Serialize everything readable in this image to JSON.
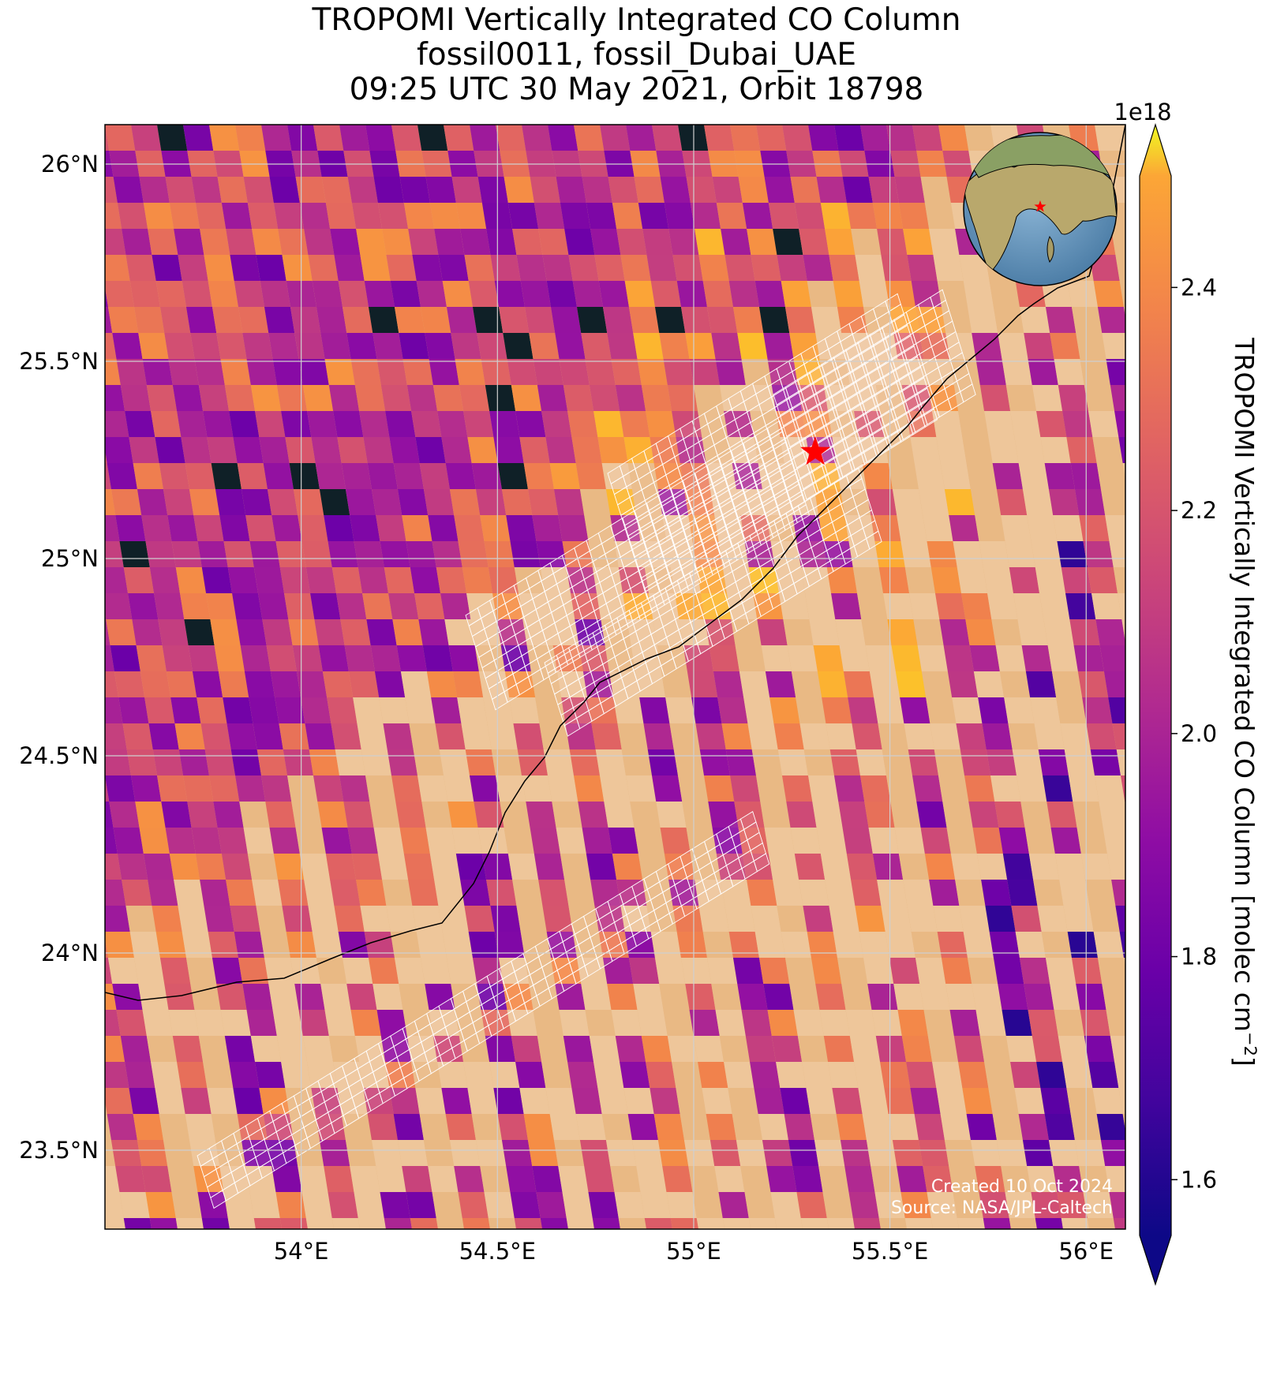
{
  "title": {
    "line1": "TROPOMI Vertically Integrated CO Column",
    "line2": "fossil0011, fossil_Dubai_UAE",
    "line3": "09:25 UTC 30 May 2021, Orbit 18798"
  },
  "map": {
    "lon_range": [
      53.5,
      56.1
    ],
    "lat_range": [
      23.3,
      26.1
    ],
    "lon_ticks": [
      {
        "value": 54.0,
        "label": "54°E"
      },
      {
        "value": 54.5,
        "label": "54.5°E"
      },
      {
        "value": 55.0,
        "label": "55°E"
      },
      {
        "value": 55.5,
        "label": "55.5°E"
      },
      {
        "value": 56.0,
        "label": "56°E"
      }
    ],
    "lat_ticks": [
      {
        "value": 26.0,
        "label": "26°N"
      },
      {
        "value": 25.5,
        "label": "25.5°N"
      },
      {
        "value": 25.0,
        "label": "25°N"
      },
      {
        "value": 24.5,
        "label": "24.5°N"
      },
      {
        "value": 24.0,
        "label": "24°N"
      },
      {
        "value": 23.5,
        "label": "23.5°N"
      }
    ],
    "target_site": {
      "name": "fossil_Dubai_UAE",
      "lon": 55.31,
      "lat": 25.27,
      "marker": "red-star-icon",
      "color": "#ff0000"
    },
    "target_swath": {
      "outline_color": "#ffffff",
      "description": "white grid of target-mode footprints along the coast"
    },
    "grid_on": true,
    "no_data_color": "#0f2027",
    "basemap": "satellite imagery, desert and sea",
    "inset_globe": {
      "marker": "red-star-icon",
      "location": "top-right"
    }
  },
  "colorbar": {
    "label": "TROPOMI Vertically Integrated CO Column [molec cm",
    "label_superscript": "−2",
    "label_close": "]",
    "multiplier": "1e18",
    "vmin": 1.55,
    "vmax": 2.5,
    "colormap": "plasma",
    "extend": "both",
    "ticks": [
      {
        "value": 1.6,
        "label": "1.6"
      },
      {
        "value": 1.8,
        "label": "1.8"
      },
      {
        "value": 2.0,
        "label": "2.0"
      },
      {
        "value": 2.2,
        "label": "2.2"
      },
      {
        "value": 2.4,
        "label": "2.4"
      }
    ]
  },
  "credits": {
    "created": "Created 10 Oct 2024",
    "source": "Source: NASA/JPL-Caltech"
  }
}
